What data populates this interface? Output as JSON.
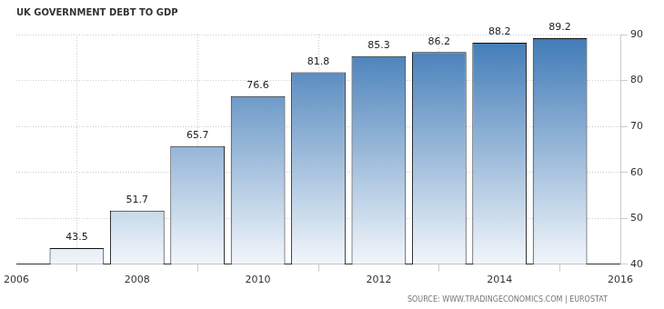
{
  "chart_data": {
    "type": "bar",
    "title": "UK GOVERNMENT DEBT TO GDP",
    "source": "SOURCE: WWW.TRADINGECONOMICS.COM | EUROSTAT",
    "x": [
      2007,
      2008,
      2009,
      2010,
      2011,
      2012,
      2013,
      2014,
      2015
    ],
    "values": [
      43.5,
      51.7,
      65.7,
      76.6,
      81.8,
      85.3,
      86.2,
      88.2,
      89.2
    ],
    "color": "#3e79b6",
    "xlim": [
      2006,
      2016
    ],
    "xticks": [
      2006,
      2008,
      2010,
      2012,
      2014,
      2016
    ],
    "ylim": [
      40,
      90
    ],
    "yticks": [
      40,
      50,
      60,
      70,
      80,
      90
    ],
    "grid": true,
    "data_labels": true
  }
}
